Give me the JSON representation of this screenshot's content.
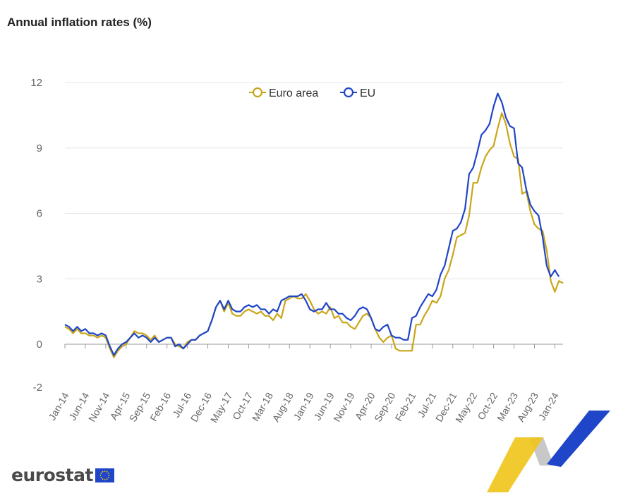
{
  "chart_title": "Annual inflation rates (%)",
  "brand": {
    "name": "eurostat",
    "colors": {
      "euro_area": "#c9a619",
      "eu": "#1f45c8",
      "flag_blue": "#1f45c8",
      "flag_star": "#ffd400"
    }
  },
  "chart_data": {
    "type": "line",
    "title": "Annual inflation rates (%)",
    "legend_position": "top-center",
    "grid": true,
    "ylim": [
      -2,
      12
    ],
    "yticks": [
      12,
      9,
      6,
      3,
      0,
      -2
    ],
    "x_tick_labels": [
      "Jan-14",
      "Jun-14",
      "Nov-14",
      "Apr-15",
      "Sep-15",
      "Feb-16",
      "Jul-16",
      "Dec-16",
      "May-17",
      "Oct-17",
      "Mar-18",
      "Aug-18",
      "Jan-19",
      "Jun-19",
      "Nov-19",
      "Apr-20",
      "Sep-20",
      "Feb-21",
      "Jul-21",
      "Dec-21",
      "May-22",
      "Oct-22",
      "Mar-23",
      "Aug-23",
      "Jan-24"
    ],
    "x_start": "Jan-14",
    "x_end": "Jan-24",
    "series": [
      {
        "name": "Euro area",
        "color": "#c9a619",
        "values": [
          0.8,
          0.7,
          0.5,
          0.7,
          0.5,
          0.5,
          0.4,
          0.4,
          0.3,
          0.4,
          0.3,
          -0.2,
          -0.6,
          -0.3,
          -0.1,
          0.0,
          0.3,
          0.6,
          0.5,
          0.5,
          0.4,
          0.2,
          0.4,
          0.1,
          0.2,
          0.3,
          0.3,
          0.0,
          -0.1,
          -0.2,
          0.1,
          0.2,
          0.2,
          0.4,
          0.5,
          0.6,
          1.1,
          1.7,
          2.0,
          1.5,
          1.9,
          1.4,
          1.3,
          1.3,
          1.5,
          1.6,
          1.5,
          1.4,
          1.5,
          1.3,
          1.3,
          1.1,
          1.4,
          1.2,
          2.0,
          2.1,
          2.2,
          2.1,
          2.1,
          2.3,
          2.0,
          1.6,
          1.4,
          1.5,
          1.4,
          1.7,
          1.2,
          1.3,
          1.0,
          1.0,
          0.8,
          0.7,
          1.0,
          1.3,
          1.4,
          1.2,
          0.7,
          0.3,
          0.1,
          0.3,
          0.4,
          -0.2,
          -0.3,
          -0.3,
          -0.3,
          -0.3,
          0.9,
          0.9,
          1.3,
          1.6,
          2.0,
          1.9,
          2.2,
          3.0,
          3.4,
          4.1,
          4.9,
          5.0,
          5.1,
          5.9,
          7.4,
          7.4,
          8.1,
          8.6,
          8.9,
          9.1,
          9.9,
          10.6,
          10.1,
          9.2,
          8.6,
          8.5,
          6.9,
          7.0,
          6.1,
          5.5,
          5.3,
          5.2,
          4.3,
          2.9,
          2.4,
          2.9,
          2.8
        ]
      },
      {
        "name": "EU",
        "color": "#1f45c8",
        "values": [
          0.9,
          0.8,
          0.6,
          0.8,
          0.6,
          0.7,
          0.5,
          0.5,
          0.4,
          0.5,
          0.4,
          -0.1,
          -0.5,
          -0.2,
          0.0,
          0.1,
          0.3,
          0.5,
          0.3,
          0.4,
          0.3,
          0.1,
          0.3,
          0.1,
          0.2,
          0.3,
          0.3,
          -0.1,
          0.0,
          -0.2,
          0.0,
          0.2,
          0.2,
          0.4,
          0.5,
          0.6,
          1.1,
          1.7,
          2.0,
          1.6,
          2.0,
          1.6,
          1.5,
          1.5,
          1.7,
          1.8,
          1.7,
          1.8,
          1.6,
          1.6,
          1.4,
          1.6,
          1.5,
          2.0,
          2.1,
          2.2,
          2.2,
          2.2,
          2.3,
          2.0,
          1.6,
          1.5,
          1.6,
          1.6,
          1.9,
          1.6,
          1.6,
          1.4,
          1.4,
          1.2,
          1.1,
          1.3,
          1.6,
          1.7,
          1.6,
          1.2,
          0.7,
          0.6,
          0.8,
          0.9,
          0.4,
          0.3,
          0.3,
          0.2,
          0.2,
          1.2,
          1.3,
          1.7,
          2.0,
          2.3,
          2.2,
          2.5,
          3.2,
          3.6,
          4.4,
          5.2,
          5.3,
          5.6,
          6.2,
          7.8,
          8.1,
          8.8,
          9.6,
          9.8,
          10.1,
          10.9,
          11.5,
          11.1,
          10.4,
          10.0,
          9.9,
          8.3,
          8.1,
          7.1,
          6.4,
          6.1,
          5.9,
          4.9,
          3.6,
          3.1,
          3.4,
          3.1
        ]
      }
    ]
  }
}
